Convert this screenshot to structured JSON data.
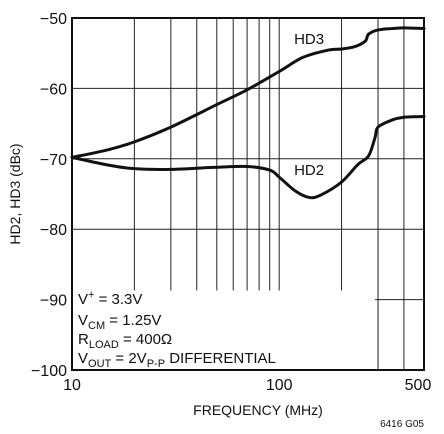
{
  "chart_data": {
    "type": "line",
    "title": "",
    "xlabel": "FREQUENCY (MHz)",
    "ylabel": "HD2, HD3 (dBc)",
    "xscale": "log",
    "xlim": [
      10,
      500
    ],
    "ylim": [
      -100,
      -50
    ],
    "x_tick_labels": [
      "10",
      "100",
      "500"
    ],
    "y_tick_labels": [
      "−50",
      "−60",
      "−70",
      "−80",
      "−90",
      "−100"
    ],
    "grid": true,
    "series": [
      {
        "name": "HD3",
        "x": [
          10,
          15,
          20,
          30,
          50,
          70,
          100,
          130,
          170,
          200,
          230,
          260,
          270,
          300,
          350,
          400,
          500
        ],
        "y": [
          -69.8,
          -68.7,
          -67.6,
          -65.5,
          -62.3,
          -60.2,
          -57.6,
          -55.6,
          -54.6,
          -54.4,
          -54.1,
          -53.3,
          -52.3,
          -51.7,
          -51.5,
          -51.4,
          -51.5
        ]
      },
      {
        "name": "HD2",
        "x": [
          10,
          15,
          20,
          30,
          50,
          70,
          90,
          100,
          120,
          140,
          160,
          200,
          240,
          270,
          290,
          300,
          350,
          400,
          500
        ],
        "y": [
          -69.8,
          -70.9,
          -71.4,
          -71.5,
          -71.2,
          -71.1,
          -71.6,
          -72.6,
          -74.6,
          -75.5,
          -75.1,
          -73.3,
          -70.8,
          -69.6,
          -67.0,
          -65.5,
          -64.5,
          -64.1,
          -64.0
        ]
      }
    ],
    "series_labels": [
      "HD3",
      "HD2"
    ],
    "annotation": {
      "line1": {
        "a": "V",
        "sup": "+",
        "b": " = 3.3V"
      },
      "line2": {
        "a": "V",
        "sub": "CM",
        "b": " = 1.25V"
      },
      "line3": {
        "a": "R",
        "sub": "LOAD",
        "b": " = 400Ω"
      },
      "line4": {
        "a": "V",
        "sub": "OUT",
        "b": " = 2V",
        "sub2": "P-P",
        "c": " DIFFERENTIAL"
      }
    },
    "figure_id": "6416 G05"
  },
  "colors": {
    "line": "#111111",
    "grid": "#222222",
    "background": "#ffffff"
  }
}
